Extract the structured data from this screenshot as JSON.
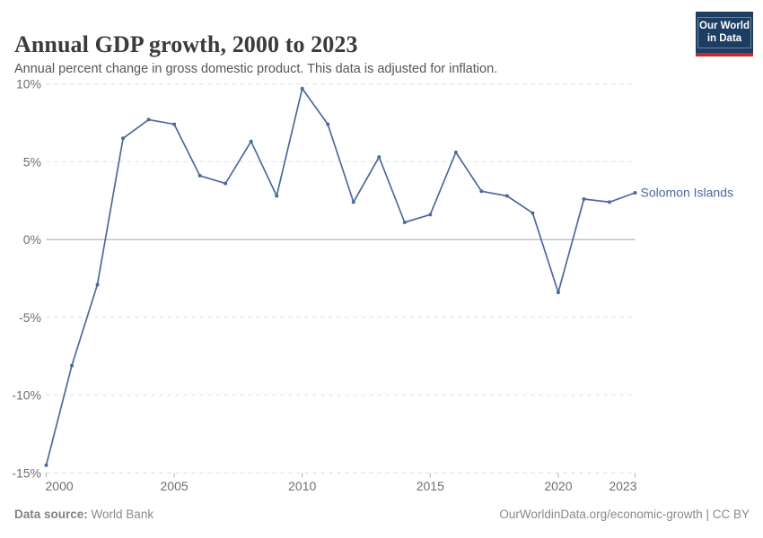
{
  "header": {
    "title": "Annual GDP growth, 2000 to 2023",
    "subtitle": "Annual percent change in gross domestic product. This data is adjusted for inflation.",
    "logo": {
      "line1": "Our World",
      "line2": "in Data",
      "bg_color": "#1d3d63",
      "bar_color": "#c7292e"
    }
  },
  "chart_data": {
    "type": "line",
    "x": [
      2000,
      2001,
      2002,
      2003,
      2004,
      2005,
      2006,
      2007,
      2008,
      2009,
      2010,
      2011,
      2012,
      2013,
      2014,
      2015,
      2016,
      2017,
      2018,
      2019,
      2020,
      2021,
      2022,
      2023
    ],
    "series": [
      {
        "name": "Solomon Islands",
        "color": "#4c6a9c",
        "values": [
          -14.5,
          -8.1,
          -2.9,
          6.5,
          7.7,
          7.4,
          4.1,
          3.6,
          6.3,
          2.8,
          9.7,
          7.4,
          2.4,
          5.3,
          1.1,
          1.6,
          5.6,
          3.1,
          2.8,
          1.7,
          -3.4,
          2.6,
          2.4,
          3.0
        ]
      }
    ],
    "title": "Annual GDP growth, 2000 to 2023",
    "xlabel": "",
    "ylabel": "",
    "xlim": [
      2000,
      2023
    ],
    "ylim": [
      -15,
      10
    ],
    "y_ticks": [
      {
        "v": 10,
        "label": "10%"
      },
      {
        "v": 5,
        "label": "5%"
      },
      {
        "v": 0,
        "label": "0%"
      },
      {
        "v": -5,
        "label": "-5%"
      },
      {
        "v": -10,
        "label": "-10%"
      },
      {
        "v": -15,
        "label": "-15%"
      }
    ],
    "x_ticks": [
      {
        "v": 2000,
        "label": "2000"
      },
      {
        "v": 2005,
        "label": "2005"
      },
      {
        "v": 2010,
        "label": "2010"
      },
      {
        "v": 2015,
        "label": "2015"
      },
      {
        "v": 2020,
        "label": "2020"
      },
      {
        "v": 2023,
        "label": "2023"
      }
    ],
    "grid": "horizontal-dashed",
    "zero_line": true,
    "legend_position": "end-of-line",
    "colors": {
      "grid": "#dcdcdc",
      "zero_line": "#a5a5a5",
      "tick": "#b0b0b0",
      "axis_text": "#6e6e6e"
    }
  },
  "footer": {
    "source_label": "Data source:",
    "source_value": "World Bank",
    "right_text": "OurWorldinData.org/economic-growth | CC BY"
  }
}
